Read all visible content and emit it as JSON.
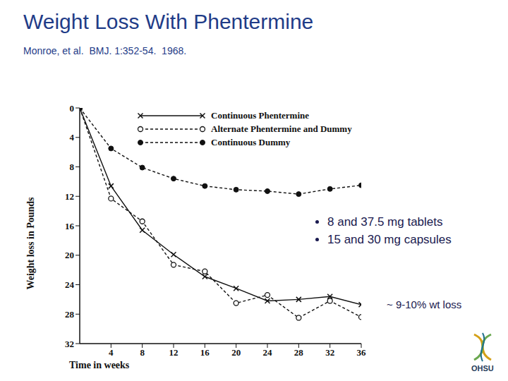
{
  "chart_data": {
    "type": "line",
    "title": "Weight Loss With Phentermine",
    "subtitle": "Monroe, et al.  BMJ. 1:352-54.  1968.",
    "x_label": "Time in weeks",
    "y_label": "Weight loss in Pounds",
    "x": [
      0,
      4,
      8,
      12,
      16,
      20,
      24,
      28,
      32,
      36
    ],
    "series": [
      {
        "name": "Continuous Phentermine",
        "color": "#111111",
        "marker": "x",
        "line_style": "solid",
        "values": [
          0,
          10.6,
          16.6,
          19.9,
          22.9,
          24.5,
          26.2,
          26,
          25.6,
          26.7
        ]
      },
      {
        "name": "Alternate Phentermine and Dummy",
        "color": "#111111",
        "marker": "circle_open",
        "line_style": "dashed",
        "values": [
          0,
          12.3,
          15.4,
          21.3,
          22.2,
          26.5,
          25.4,
          28.5,
          26.2,
          28.4
        ]
      },
      {
        "name": "Continuous Dummy",
        "color": "#111111",
        "marker": "circle",
        "line_style": "dashed",
        "values": [
          0,
          5.5,
          8.1,
          9.6,
          10.6,
          11.1,
          11.3,
          11.7,
          11,
          10.5
        ]
      }
    ],
    "xlim": [
      0,
      36
    ],
    "xticks": [
      4,
      8,
      12,
      16,
      20,
      24,
      28,
      32,
      36
    ],
    "ylim": [
      0,
      32
    ],
    "yticks": [
      0,
      4,
      8,
      12,
      16,
      20,
      24,
      28,
      32
    ],
    "grid": false,
    "legend": "upper center",
    "annotations": [
      "8 and 37.5 mg tablets",
      "15 and 30 mg capsules",
      "~ 9-10% wt loss"
    ],
    "footer": "OHSU"
  }
}
